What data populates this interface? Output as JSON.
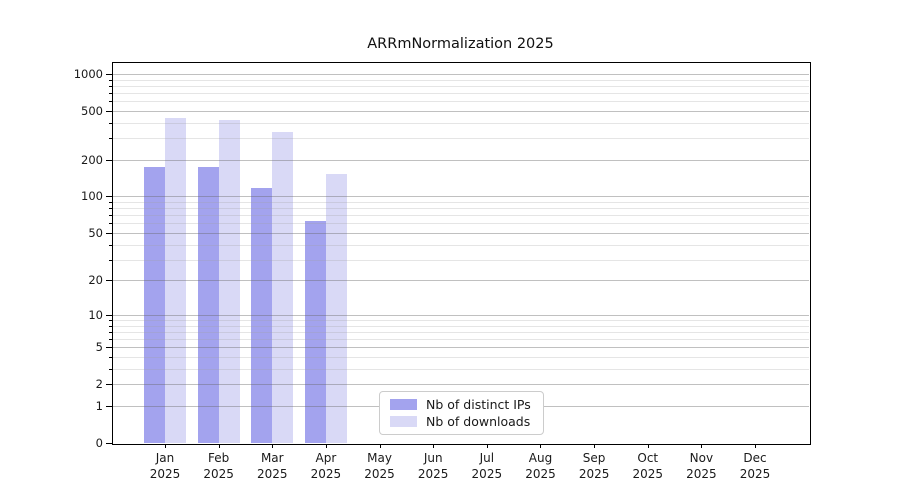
{
  "chart_data": {
    "type": "bar",
    "title": "ARRmNormalization 2025",
    "categories": [
      "Jan",
      "Feb",
      "Mar",
      "Apr",
      "May",
      "Jun",
      "Jul",
      "Aug",
      "Sep",
      "Oct",
      "Nov",
      "Dec"
    ],
    "x_tick_year": "2025",
    "series": [
      {
        "name": "Nb of distinct IPs",
        "color": "#a3a3ee",
        "values": [
          175,
          174,
          118,
          63,
          null,
          null,
          null,
          null,
          null,
          null,
          null,
          null
        ]
      },
      {
        "name": "Nb of downloads",
        "color": "#d9d9f6",
        "values": [
          438,
          422,
          334,
          154,
          null,
          null,
          null,
          null,
          null,
          null,
          null,
          null
        ]
      }
    ],
    "yscale": "log1p",
    "ylim": [
      0,
      1250
    ],
    "y_major_ticks": [
      0,
      1,
      2,
      5,
      10,
      20,
      50,
      100,
      200,
      500,
      1000
    ],
    "y_tick_labels": [
      "0",
      "1",
      "2",
      "5",
      "10",
      "20",
      "50",
      "100",
      "200",
      "500",
      "1000"
    ],
    "y_minor_ticks": [
      3,
      4,
      6,
      7,
      8,
      9,
      30,
      40,
      60,
      70,
      80,
      90,
      300,
      400,
      600,
      700,
      800,
      900
    ],
    "grid": "major and minor horizontal gridlines, drawn over bars",
    "legend": {
      "position": "inside lower center"
    }
  },
  "colors": {
    "background": "#ffffff",
    "axis": "#000000",
    "major_grid": "#bdbdbd",
    "minor_grid": "#e9e9e9",
    "text": "#1a1a1a"
  }
}
